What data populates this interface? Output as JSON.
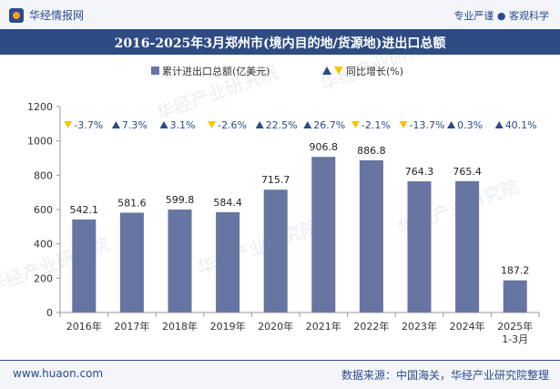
{
  "header": {
    "brand": "华经情报网",
    "tagline": "专业严谨 ● 客观科学"
  },
  "footer": {
    "url": "www.huaon.com",
    "source": "数据来源：中国海关，华经产业研究院整理"
  },
  "watermark": "华经产业研究院",
  "colors": {
    "bar": "#6675a1",
    "up": "#2e4b82",
    "down": "#f5c700",
    "title_bg": "#2e4b82"
  },
  "chart_data": {
    "type": "bar",
    "title": "2016-2025年3月郑州市(境内目的地/货源地)进出口总额",
    "categories": [
      "2016年",
      "2017年",
      "2018年",
      "2019年",
      "2020年",
      "2021年",
      "2022年",
      "2023年",
      "2024年",
      "2025年1-3月"
    ],
    "series": [
      {
        "name": "累计进出口总额(亿美元)",
        "values": [
          542.1,
          581.6,
          599.8,
          584.4,
          715.7,
          906.8,
          886.8,
          764.3,
          765.4,
          187.2
        ],
        "labels": [
          "542.1",
          "581.6",
          "599.8",
          "584.4",
          "715.7",
          "906.8",
          "886.8",
          "764.3",
          "765.4",
          "187.2"
        ]
      },
      {
        "name": "同比增长(%)",
        "values": [
          -3.7,
          7.3,
          3.1,
          -2.6,
          22.5,
          26.7,
          -2.1,
          -13.7,
          0.3,
          40.1
        ],
        "labels": [
          "-3.7%",
          "7.3%",
          "3.1%",
          "-2.6%",
          "22.5%",
          "26.7%",
          "-2.1%",
          "-13.7%",
          "0.3%",
          "40.1%"
        ]
      }
    ],
    "ylim": [
      0,
      1200
    ],
    "yticks": [
      "0",
      "200",
      "400",
      "600",
      "800",
      "1000",
      "1200"
    ],
    "legend_position": "top-center",
    "grid": false
  }
}
